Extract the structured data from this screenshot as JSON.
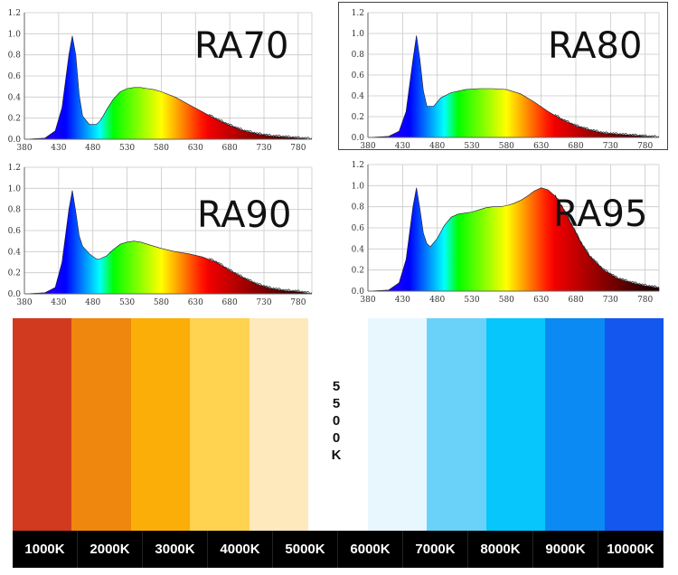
{
  "chart_data": [
    {
      "type": "area",
      "title": "RA70",
      "xlim": [
        380,
        800
      ],
      "ylim": [
        0,
        1.2
      ],
      "xticks": [
        "380",
        "430",
        "480",
        "530",
        "580",
        "630",
        "680",
        "730",
        "780"
      ],
      "yticks": [
        "0.0",
        "0.2",
        "0.4",
        "0.6",
        "0.8",
        "1.0",
        "1.2"
      ],
      "x": [
        380,
        410,
        425,
        435,
        445,
        450,
        455,
        460,
        465,
        475,
        485,
        490,
        495,
        500,
        510,
        520,
        530,
        540,
        550,
        560,
        570,
        580,
        600,
        620,
        640,
        660,
        680,
        700,
        720,
        740,
        760,
        780,
        800
      ],
      "y": [
        0,
        0.01,
        0.08,
        0.3,
        0.8,
        0.98,
        0.8,
        0.42,
        0.22,
        0.14,
        0.14,
        0.17,
        0.22,
        0.28,
        0.38,
        0.45,
        0.48,
        0.49,
        0.49,
        0.48,
        0.47,
        0.45,
        0.4,
        0.33,
        0.26,
        0.19,
        0.13,
        0.08,
        0.05,
        0.03,
        0.02,
        0.01,
        0
      ]
    },
    {
      "type": "area",
      "title": "RA80",
      "xlim": [
        380,
        800
      ],
      "ylim": [
        0,
        1.2
      ],
      "xticks": [
        "380",
        "430",
        "480",
        "530",
        "580",
        "630",
        "680",
        "730",
        "780"
      ],
      "yticks": [
        "0.0",
        "0.2",
        "0.4",
        "0.6",
        "0.8",
        "1.0",
        "1.2"
      ],
      "x": [
        380,
        410,
        425,
        435,
        445,
        450,
        455,
        460,
        465,
        475,
        485,
        500,
        520,
        540,
        560,
        580,
        600,
        620,
        640,
        660,
        680,
        700,
        720,
        740,
        760,
        780,
        800
      ],
      "y": [
        0,
        0.01,
        0.06,
        0.25,
        0.75,
        0.98,
        0.75,
        0.45,
        0.3,
        0.3,
        0.38,
        0.43,
        0.46,
        0.47,
        0.47,
        0.46,
        0.42,
        0.34,
        0.25,
        0.17,
        0.11,
        0.07,
        0.04,
        0.03,
        0.02,
        0.01,
        0
      ]
    },
    {
      "type": "area",
      "title": "RA90",
      "xlim": [
        380,
        800
      ],
      "ylim": [
        0,
        1.2
      ],
      "xticks": [
        "380",
        "430",
        "480",
        "530",
        "580",
        "630",
        "680",
        "730",
        "780"
      ],
      "yticks": [
        "0.0",
        "0.2",
        "0.4",
        "0.6",
        "0.8",
        "1.0",
        "1.2"
      ],
      "x": [
        380,
        410,
        425,
        435,
        445,
        450,
        455,
        460,
        465,
        475,
        485,
        490,
        500,
        510,
        520,
        530,
        540,
        550,
        560,
        580,
        600,
        620,
        640,
        660,
        680,
        700,
        720,
        740,
        760,
        780,
        800
      ],
      "y": [
        0,
        0.01,
        0.06,
        0.3,
        0.8,
        0.98,
        0.78,
        0.55,
        0.45,
        0.38,
        0.33,
        0.33,
        0.36,
        0.42,
        0.47,
        0.49,
        0.5,
        0.49,
        0.47,
        0.43,
        0.4,
        0.38,
        0.35,
        0.3,
        0.22,
        0.15,
        0.09,
        0.05,
        0.03,
        0.02,
        0
      ]
    },
    {
      "type": "area",
      "title": "RA95",
      "xlim": [
        380,
        800
      ],
      "ylim": [
        0,
        1.2
      ],
      "xticks": [
        "380",
        "430",
        "480",
        "530",
        "580",
        "630",
        "680",
        "730",
        "780"
      ],
      "yticks": [
        "0.0",
        "0.2",
        "0.4",
        "0.6",
        "0.8",
        "1.0",
        "1.2"
      ],
      "x": [
        380,
        410,
        425,
        435,
        445,
        450,
        455,
        460,
        465,
        470,
        480,
        490,
        500,
        510,
        520,
        530,
        540,
        550,
        560,
        570,
        580,
        590,
        600,
        610,
        620,
        630,
        640,
        650,
        660,
        670,
        680,
        690,
        700,
        720,
        740,
        760,
        780,
        800
      ],
      "y": [
        0,
        0.01,
        0.08,
        0.3,
        0.8,
        0.98,
        0.78,
        0.55,
        0.45,
        0.42,
        0.5,
        0.62,
        0.7,
        0.73,
        0.74,
        0.75,
        0.77,
        0.79,
        0.8,
        0.8,
        0.81,
        0.83,
        0.86,
        0.9,
        0.95,
        0.98,
        0.96,
        0.9,
        0.8,
        0.68,
        0.55,
        0.43,
        0.33,
        0.2,
        0.12,
        0.08,
        0.05,
        0.03
      ]
    }
  ],
  "color_temperatures": {
    "middle_label_chars": [
      "5",
      "5",
      "0",
      "0",
      "K"
    ],
    "swatches": [
      {
        "label": "1000K",
        "color": "#d13a1f"
      },
      {
        "label": "2000K",
        "color": "#ef860d"
      },
      {
        "label": "3000K",
        "color": "#fbae07"
      },
      {
        "label": "4000K",
        "color": "#ffd24f"
      },
      {
        "label": "5000K",
        "color": "#fde9bb"
      },
      {
        "label": "5500K",
        "color": "#ffffff"
      },
      {
        "label": "6000K",
        "color": "#e7f7fd"
      },
      {
        "label": "7000K",
        "color": "#6ad2f8"
      },
      {
        "label": "8000K",
        "color": "#07c6fb"
      },
      {
        "label": "9000K",
        "color": "#0a8af2"
      },
      {
        "label": "10000K",
        "color": "#1357ee"
      }
    ],
    "bottom_labels": [
      "1000K",
      "2000K",
      "3000K",
      "4000K",
      "5000K",
      "6000K",
      "7000K",
      "8000K",
      "9000K",
      "10000K"
    ]
  }
}
